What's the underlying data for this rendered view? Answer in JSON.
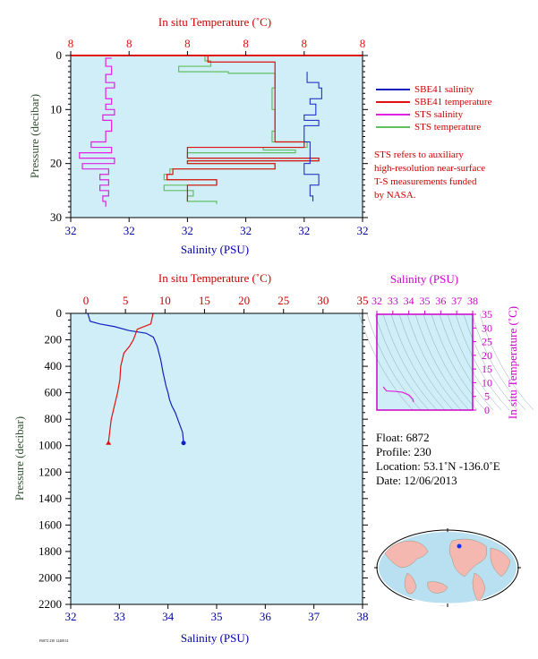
{
  "colors": {
    "salinity": "#1020c0",
    "temperature": "#e01010",
    "sts_salinity": "#e020e0",
    "sts_temperature": "#60c060",
    "plot_bg": "#d0eef8",
    "axis_label_sal": "#0000a0",
    "axis_label_temp": "#cc0000",
    "pressure_label": "#305030",
    "ts_label": "#cc00cc"
  },
  "top_chart": {
    "temp_axis_title": "In situ Temperature (˚C)",
    "temp_ticks": [
      "8",
      "8",
      "8",
      "8",
      "8",
      "8"
    ],
    "sal_axis_title": "Salinity (PSU)",
    "sal_ticks": [
      "32",
      "32",
      "32",
      "32",
      "32",
      "32"
    ],
    "pressure_title": "Pressure (decibar)",
    "pressure_ticks": [
      "0",
      "10",
      "20",
      "30"
    ]
  },
  "legend": [
    {
      "label": "SBE41 salinity",
      "color_key": "salinity"
    },
    {
      "label": "SBE41 temperature",
      "color_key": "temperature"
    },
    {
      "label": "STS salinity",
      "color_key": "sts_salinity"
    },
    {
      "label": "STS temperature",
      "color_key": "sts_temperature"
    }
  ],
  "note": [
    "STS refers to auxiliary",
    "high-resolution near-surface",
    "T-S measurements funded",
    "by NASA."
  ],
  "bottom_chart": {
    "temp_axis_title": "In situ Temperature (˚C)",
    "temp_ticks": [
      "0",
      "5",
      "10",
      "15",
      "20",
      "25",
      "30",
      "35"
    ],
    "sal_axis_title": "Salinity (PSU)",
    "sal_ticks": [
      "32",
      "33",
      "34",
      "35",
      "36",
      "37",
      "38"
    ],
    "pressure_title": "Pressure (decibar)",
    "pressure_ticks": [
      "0",
      "200",
      "400",
      "600",
      "800",
      "1000",
      "1200",
      "1400",
      "1600",
      "1800",
      "2000",
      "2200"
    ]
  },
  "ts_chart": {
    "sal_title": "Salinity (PSU)",
    "sal_ticks": [
      "32",
      "33",
      "34",
      "35",
      "36",
      "37",
      "38"
    ],
    "temp_title": "In situ Temperature (˚C)",
    "temp_ticks": [
      "0",
      "5",
      "10",
      "15",
      "20",
      "25",
      "30",
      "35"
    ]
  },
  "float_info": {
    "float": "Float:  6872",
    "profile": "Profile:  230",
    "location": "Location:  53.1˚N  -136.0˚E",
    "date": "Date:  12/06/2013"
  },
  "footer_id": "F6872 230 1240014",
  "chart_data": [
    {
      "type": "line",
      "name": "top",
      "ylim": [
        0,
        30
      ],
      "note": "tick labels printed as 32 / 8 only",
      "series": [
        {
          "key": "sts_temperature",
          "x_frac": [
            0.62,
            0.46,
            0.48,
            0.37,
            0.37,
            0.54,
            0.7,
            0.7,
            0.69,
            0.69,
            0.7,
            0.7,
            0.69,
            0.81,
            0.66,
            0.77,
            0.4,
            0.85,
            0.4,
            0.7,
            0.34,
            0.32,
            0.5,
            0.32,
            0.42,
            0.4,
            0.4,
            0.5
          ],
          "y": [
            0,
            1,
            2,
            2.5,
            3,
            3.3,
            4,
            6,
            8,
            10,
            12,
            14,
            16,
            17,
            17.5,
            18,
            19,
            19.5,
            20,
            21,
            22,
            23,
            24,
            25,
            26,
            26.5,
            27,
            27.5
          ]
        },
        {
          "key": "temperature",
          "x_frac": [
            0.62,
            0.47,
            0.7,
            0.7,
            0.7,
            0.7,
            0.8,
            0.4,
            0.85,
            0.4,
            0.7,
            0.35,
            0.33,
            0.5,
            0.4,
            0.4
          ],
          "y": [
            0,
            1.2,
            4,
            8,
            12,
            16,
            17,
            19,
            19.5,
            20,
            21,
            22,
            23,
            24,
            26,
            27
          ]
        },
        {
          "key": "salinity",
          "x_frac": [
            0.81,
            0.81,
            0.85,
            0.86,
            0.82,
            0.84,
            0.84,
            0.8,
            0.85,
            0.8,
            0.82,
            0.82,
            0.82,
            0.8,
            0.85,
            0.82,
            0.83
          ],
          "y": [
            3,
            5,
            6,
            8,
            9,
            10,
            11,
            12,
            13,
            16,
            17,
            18,
            20,
            22,
            24,
            26,
            27
          ]
        },
        {
          "key": "sts_salinity",
          "x_frac": [
            0.14,
            0.12,
            0.14,
            0.12,
            0.15,
            0.12,
            0.14,
            0.12,
            0.15,
            0.11,
            0.14,
            0.12,
            0.07,
            0.14,
            0.03,
            0.15,
            0.04,
            0.13,
            0.1,
            0.13,
            0.1,
            0.13,
            0.11,
            0.12
          ],
          "y": [
            0.5,
            2,
            3.5,
            5,
            6,
            8,
            9,
            10,
            11,
            12,
            14,
            16,
            17,
            18,
            19,
            20,
            21,
            22,
            23,
            24,
            25,
            26,
            27,
            28
          ]
        }
      ]
    },
    {
      "type": "line",
      "name": "profile",
      "xlim_salinity": [
        32,
        38
      ],
      "xlim_temperature": [
        0,
        35
      ],
      "ylim": [
        0,
        2200
      ],
      "series": [
        {
          "key": "salinity",
          "x": [
            32.35,
            32.4,
            32.6,
            32.9,
            33.2,
            33.55,
            33.7,
            33.78,
            33.85,
            33.9,
            33.96,
            34.0,
            34.03,
            34.08,
            34.15,
            34.2,
            34.25,
            34.3,
            34.32
          ],
          "y": [
            0,
            60,
            80,
            100,
            130,
            150,
            180,
            250,
            350,
            450,
            550,
            600,
            650,
            700,
            750,
            800,
            850,
            900,
            980
          ]
        },
        {
          "key": "temperature",
          "x": [
            8.5,
            8.2,
            6.5,
            6.0,
            5.5,
            4.8,
            4.6,
            4.4,
            4.3,
            4.0,
            3.6,
            3.2,
            3.0,
            2.9,
            2.85
          ],
          "y": [
            0,
            80,
            120,
            200,
            250,
            300,
            350,
            400,
            500,
            600,
            700,
            800,
            900,
            950,
            980
          ]
        }
      ]
    },
    {
      "type": "line",
      "name": "ts_diagram",
      "xlim": [
        32,
        38
      ],
      "ylim": [
        0,
        35
      ],
      "series": [
        {
          "key": "sts_salinity",
          "x": [
            32.4,
            32.6,
            33.2,
            33.6,
            34.0,
            34.1,
            34.25,
            34.3
          ],
          "y": [
            8.5,
            7.0,
            6.8,
            6.5,
            5.5,
            5.0,
            4.0,
            2.9
          ]
        }
      ]
    }
  ]
}
